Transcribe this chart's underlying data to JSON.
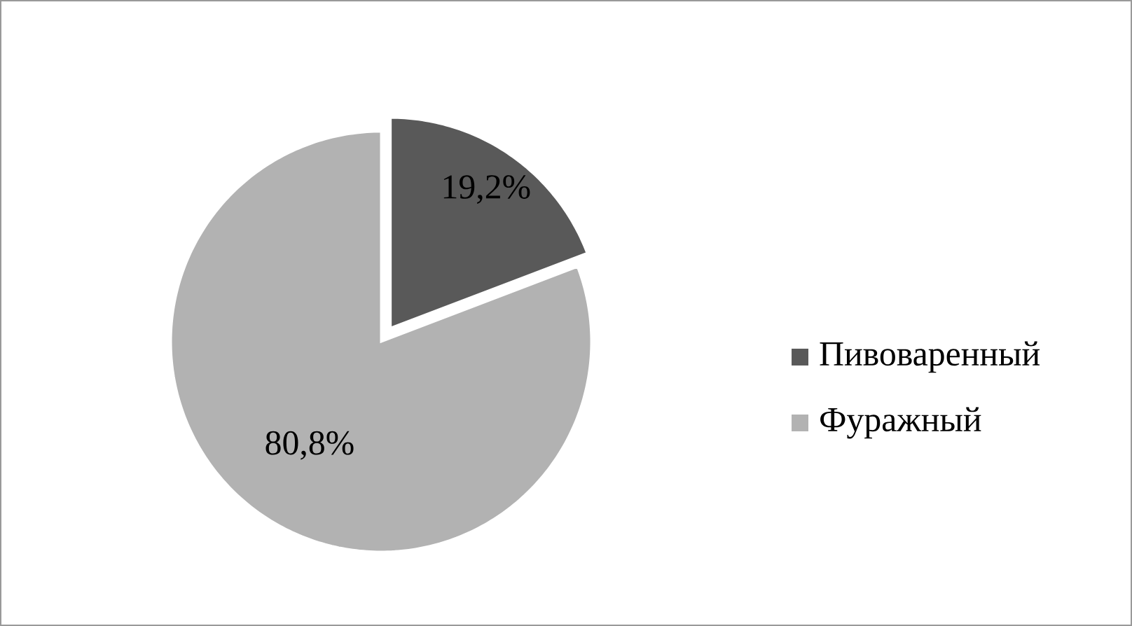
{
  "chart_data": {
    "type": "pie",
    "categories": [
      "Пивоваренный",
      "Фуражный"
    ],
    "values": [
      19.2,
      80.8
    ],
    "colors": [
      "#595959",
      "#b2b2b2"
    ],
    "value_labels": [
      "19,2%",
      "80,8%"
    ],
    "legend": "right"
  }
}
